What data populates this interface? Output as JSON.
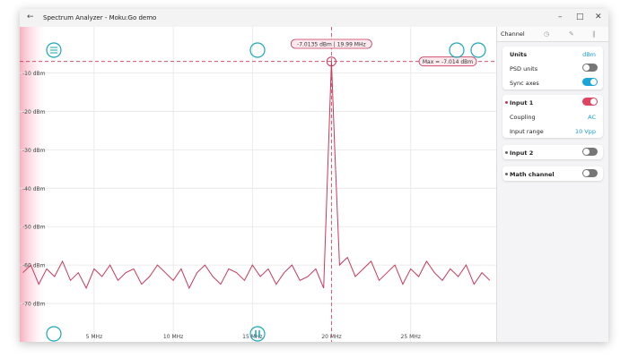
{
  "window": {
    "title": "Spectrum Analyzer - Moku:Go demo"
  },
  "panel": {
    "tab": "Channel",
    "units": {
      "label": "Units",
      "value": "dBm"
    },
    "psd_units": {
      "label": "PSD units",
      "on": false
    },
    "sync_axes": {
      "label": "Sync axes",
      "on": true
    },
    "input1": {
      "label": "Input 1",
      "on": true,
      "coupling_label": "Coupling",
      "coupling": "AC",
      "range_label": "Input range",
      "range": "10 Vpp"
    },
    "input2": {
      "label": "Input 2",
      "on": false
    },
    "math": {
      "label": "Math channel",
      "on": false
    }
  },
  "chart_data": {
    "type": "line",
    "x": [
      0.5,
      1,
      1.5,
      2,
      2.5,
      3,
      3.5,
      4,
      4.5,
      5,
      5.5,
      6,
      6.5,
      7,
      7.5,
      8,
      8.5,
      9,
      9.5,
      10,
      10.5,
      11,
      11.5,
      12,
      12.5,
      13,
      13.5,
      14,
      14.5,
      15,
      15.5,
      16,
      16.5,
      17,
      17.5,
      18,
      18.5,
      19,
      19.5,
      19.8,
      19.99,
      20.2,
      20.5,
      21,
      21.5,
      22,
      22.5,
      23,
      23.5,
      24,
      24.5,
      25,
      25.5,
      26,
      26.5,
      27,
      27.5,
      28,
      28.5,
      29,
      29.5,
      30
    ],
    "values": [
      -62,
      -60,
      -65,
      -61,
      -63,
      -59,
      -64,
      -62,
      -66,
      -61,
      -63,
      -60,
      -64,
      -62,
      -61,
      -65,
      -63,
      -60,
      -62,
      -64,
      -61,
      -66,
      -62,
      -60,
      -63,
      -65,
      -61,
      -62,
      -64,
      -60,
      -63,
      -61,
      -65,
      -62,
      -60,
      -64,
      -63,
      -61,
      -66,
      -30,
      -7.014,
      -30,
      -60,
      -58,
      -63,
      -61,
      -59,
      -64,
      -62,
      -60,
      -65,
      -61,
      -63,
      -59,
      -62,
      -64,
      -61,
      -63,
      -60,
      -65,
      -62,
      -64
    ],
    "color": "#c8385a",
    "xlim": [
      0.3,
      30.4
    ],
    "ylim": [
      -80,
      2
    ],
    "xticks": [
      {
        "value": 5,
        "label": "5 MHz"
      },
      {
        "value": 10,
        "label": "10 MHz"
      },
      {
        "value": 15,
        "label": "15 MHz"
      },
      {
        "value": 20,
        "label": "20 MHz"
      },
      {
        "value": 25,
        "label": "25 MHz"
      }
    ],
    "yticks": [
      {
        "value": -10,
        "label": "-10 dBm"
      },
      {
        "value": -20,
        "label": "-20 dBm"
      },
      {
        "value": -30,
        "label": "-30 dBm"
      },
      {
        "value": -40,
        "label": "-40 dBm"
      },
      {
        "value": -50,
        "label": "-50 dBm"
      },
      {
        "value": -60,
        "label": "-60 dBm"
      },
      {
        "value": -70,
        "label": "-70 dBm"
      }
    ],
    "grid": true,
    "cursor_x": 19.99,
    "max_value": -7.014,
    "cursor_label": "-7.0135 dBm | 19.99 MHz",
    "max_label": "Max = -7.014 dBm"
  }
}
